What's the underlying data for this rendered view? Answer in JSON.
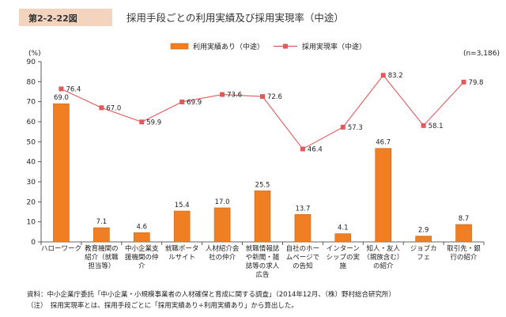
{
  "figure": {
    "badge": "第2-2-22図",
    "title": "採用手段ごとの利用実績及び採用実現率（中途）",
    "unit": "(%)",
    "sample": "(n=3,186)"
  },
  "chart_data": {
    "type": "bar",
    "categories": [
      [
        "ハローワーク"
      ],
      [
        "教育機関の",
        "紹介（就職",
        "担当等）"
      ],
      [
        "中小企業支",
        "援機関の仲",
        "介"
      ],
      [
        "就職ポータ",
        "ルサイト"
      ],
      [
        "人材紹介会",
        "社の仲介"
      ],
      [
        "就職情報誌",
        "や新聞・雑",
        "誌等の求人",
        "広告"
      ],
      [
        "自社のホー",
        "ムページで",
        "の告知"
      ],
      [
        "インターン",
        "シップの実",
        "施"
      ],
      [
        "知人・友人",
        "（親族含む）",
        "の紹介"
      ],
      [
        "ジョブカ",
        "フェ"
      ],
      [
        "取引先・銀",
        "行の紹介"
      ]
    ],
    "series": [
      {
        "name": "利用実績あり（中途）",
        "kind": "bar",
        "color": "#f07f24",
        "values": [
          69.0,
          7.1,
          4.6,
          15.4,
          17.0,
          25.5,
          13.7,
          4.1,
          46.7,
          2.9,
          8.7
        ],
        "labels": [
          "69.0",
          "7.1",
          "4.6",
          "15.4",
          "17.0",
          "25.5",
          "13.7",
          "4.1",
          "46.7",
          "2.9",
          "8.7"
        ]
      },
      {
        "name": "採用実現率（中途）",
        "kind": "line",
        "color": "#e05a5a",
        "values": [
          76.4,
          67.0,
          59.9,
          69.9,
          73.6,
          72.6,
          46.4,
          57.3,
          83.2,
          58.1,
          79.8
        ],
        "labels": [
          "76.4",
          "67.0",
          "59.9",
          "69.9",
          "73.6",
          "72.6",
          "46.4",
          "57.3",
          "83.2",
          "58.1",
          "79.8"
        ]
      }
    ],
    "y_ticks": [
      "0",
      "10",
      "20",
      "30",
      "40",
      "50",
      "60",
      "70",
      "80",
      "90"
    ],
    "ylim": [
      0,
      90
    ],
    "grid": false,
    "legend_position": "top-center"
  },
  "notes": {
    "source": "資料：中小企業庁委託「中小企業・小規模事業者の人材確保と育成に関する調査」（2014年12月、（株）野村総合研究所）",
    "note": "（注）　採用実現率とは、採用手段ごとに「採用実績あり÷利用実績あり」から算出した。"
  }
}
